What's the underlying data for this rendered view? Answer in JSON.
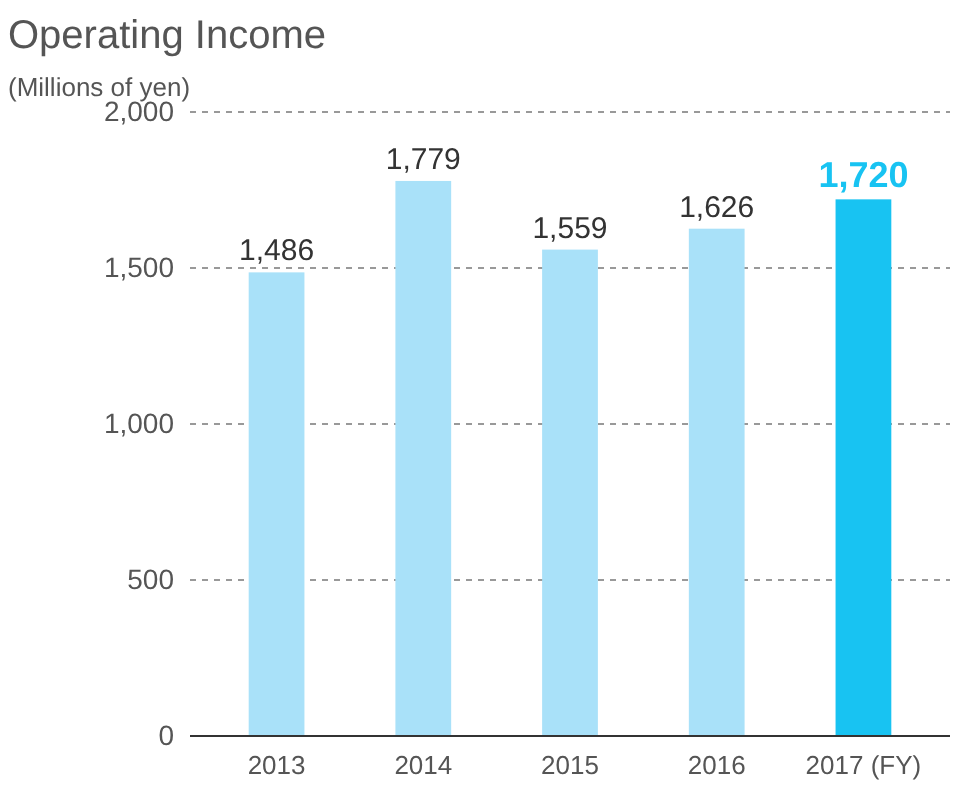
{
  "chart_data": {
    "type": "bar",
    "title": "Operating Income",
    "ylabel": "(Millions of yen)",
    "categories": [
      "2013",
      "2014",
      "2015",
      "2016",
      "2017 (FY)"
    ],
    "values": [
      1486,
      1779,
      1559,
      1626,
      1720
    ],
    "colors": [
      "#a9e1f9",
      "#a9e1f9",
      "#a9e1f9",
      "#a9e1f9",
      "#18c3f2"
    ],
    "ylim": [
      0,
      2000
    ],
    "yticks": [
      {
        "value": 0,
        "label": "0"
      },
      {
        "value": 500,
        "label": "500"
      },
      {
        "value": 1000,
        "label": "1,000"
      },
      {
        "value": 1500,
        "label": "1,500"
      },
      {
        "value": 2000,
        "label": "2,000"
      }
    ],
    "value_labels": [
      "1,486",
      "1,779",
      "1,559",
      "1,626",
      "1,720"
    ],
    "grid": "y"
  }
}
